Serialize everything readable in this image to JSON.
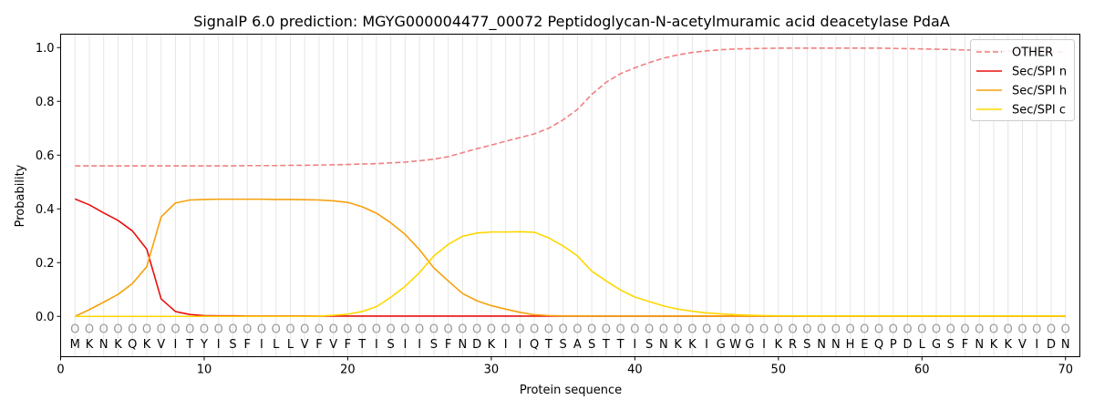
{
  "chart_data": {
    "type": "line",
    "title": "SignalP 6.0 prediction: MGYG000004477_00072 Peptidoglycan-N-acetylmuramic acid deacetylase PdaA",
    "xlabel": "Protein sequence",
    "ylabel": "Probability",
    "xlim": [
      0,
      71
    ],
    "ylim": [
      -0.15,
      1.05
    ],
    "xticks": [
      0,
      10,
      20,
      30,
      40,
      50,
      60,
      70
    ],
    "yticks": [
      0.0,
      0.2,
      0.4,
      0.6,
      0.8,
      1.0
    ],
    "xtick_labels": [
      "0",
      "10",
      "20",
      "30",
      "40",
      "50",
      "60",
      "70"
    ],
    "ytick_labels": [
      "0.0",
      "0.2",
      "0.4",
      "0.6",
      "0.8",
      "1.0"
    ],
    "grid": "vertical lines at each residue",
    "legend_position": "top-right",
    "sequence": [
      "M",
      "K",
      "N",
      "K",
      "Q",
      "K",
      "V",
      "I",
      "T",
      "Y",
      "I",
      "S",
      "F",
      "I",
      "L",
      "L",
      "V",
      "F",
      "V",
      "F",
      "T",
      "I",
      "S",
      "I",
      "I",
      "S",
      "F",
      "N",
      "D",
      "K",
      "I",
      "I",
      "Q",
      "T",
      "S",
      "A",
      "S",
      "T",
      "T",
      "I",
      "S",
      "N",
      "K",
      "K",
      "I",
      "G",
      "W",
      "G",
      "I",
      "K",
      "R",
      "S",
      "N",
      "N",
      "H",
      "E",
      "Q",
      "P",
      "D",
      "L",
      "G",
      "S",
      "F",
      "N",
      "K",
      "K",
      "V",
      "I",
      "D",
      "N"
    ],
    "marker_label": "O",
    "marker_y": -0.045,
    "series": [
      {
        "name": "OTHER",
        "color": "#f08080",
        "dashed": true,
        "values": [
          0.56,
          0.56,
          0.56,
          0.56,
          0.56,
          0.56,
          0.56,
          0.56,
          0.56,
          0.56,
          0.56,
          0.56,
          0.561,
          0.561,
          0.561,
          0.562,
          0.562,
          0.563,
          0.564,
          0.565,
          0.567,
          0.568,
          0.571,
          0.574,
          0.579,
          0.585,
          0.594,
          0.609,
          0.624,
          0.637,
          0.652,
          0.665,
          0.679,
          0.7,
          0.731,
          0.77,
          0.826,
          0.871,
          0.903,
          0.925,
          0.944,
          0.961,
          0.973,
          0.982,
          0.988,
          0.992,
          0.995,
          0.996,
          0.997,
          0.998,
          0.998,
          0.998,
          0.998,
          0.998,
          0.998,
          0.998,
          0.998,
          0.997,
          0.996,
          0.995,
          0.994,
          0.993,
          0.991,
          0.99,
          0.988,
          0.987,
          0.986,
          0.985,
          0.984,
          0.983
        ]
      },
      {
        "name": "Sec/SPI n",
        "color": "#e8100c",
        "dashed": false,
        "values": [
          0.437,
          0.415,
          0.385,
          0.357,
          0.318,
          0.25,
          0.065,
          0.018,
          0.007,
          0.003,
          0.002,
          0.002,
          0.001,
          0.001,
          0.001,
          0.001,
          0.001,
          0.001,
          0.001,
          0.001,
          0.001,
          0.001,
          0.001,
          0.001,
          0.001,
          0.001,
          0.001,
          0.001,
          0.001,
          0.001,
          0.001,
          0.001,
          0.001,
          0.001,
          0.001,
          0.001,
          0.001,
          0.001,
          0.001,
          0.001,
          0.001,
          0.001,
          0.001,
          0.001,
          0.001,
          0.001,
          0.001,
          0.001,
          0.001,
          0.001,
          0.001,
          0.001,
          0.001,
          0.001,
          0.001,
          0.001,
          0.001,
          0.001,
          0.001,
          0.001,
          0.001,
          0.001,
          0.001,
          0.001,
          0.001,
          0.001,
          0.001,
          0.001,
          0.001,
          0.001
        ]
      },
      {
        "name": "Sec/SPI h",
        "color": "#f5a10c",
        "dashed": false,
        "values": [
          0.0,
          0.025,
          0.053,
          0.082,
          0.122,
          0.185,
          0.37,
          0.422,
          0.433,
          0.435,
          0.436,
          0.436,
          0.436,
          0.436,
          0.435,
          0.435,
          0.434,
          0.433,
          0.43,
          0.424,
          0.408,
          0.384,
          0.348,
          0.305,
          0.248,
          0.18,
          0.132,
          0.085,
          0.058,
          0.04,
          0.027,
          0.015,
          0.006,
          0.003,
          0.002,
          0.002,
          0.001,
          0.001,
          0.001,
          0.001,
          0.001,
          0.001,
          0.001,
          0.001,
          0.001,
          0.001,
          0.001,
          0.001,
          0.001,
          0.001,
          0.001,
          0.001,
          0.001,
          0.001,
          0.001,
          0.001,
          0.001,
          0.001,
          0.001,
          0.001,
          0.001,
          0.001,
          0.001,
          0.001,
          0.001,
          0.001,
          0.001,
          0.001,
          0.001,
          0.001
        ]
      },
      {
        "name": "Sec/SPI c",
        "color": "#ffd700",
        "dashed": false,
        "values": [
          0.0,
          0.0,
          0.0,
          0.0,
          0.0,
          0.0,
          0.0,
          0.0,
          0.0,
          0.0,
          0.0,
          0.0,
          0.0,
          0.0,
          0.0,
          0.0,
          0.0,
          0.001,
          0.004,
          0.008,
          0.018,
          0.036,
          0.071,
          0.112,
          0.163,
          0.225,
          0.268,
          0.298,
          0.31,
          0.314,
          0.314,
          0.315,
          0.313,
          0.292,
          0.262,
          0.225,
          0.168,
          0.132,
          0.098,
          0.072,
          0.055,
          0.039,
          0.027,
          0.019,
          0.013,
          0.009,
          0.006,
          0.004,
          0.003,
          0.002,
          0.002,
          0.001,
          0.001,
          0.001,
          0.001,
          0.001,
          0.001,
          0.001,
          0.001,
          0.001,
          0.001,
          0.001,
          0.001,
          0.001,
          0.001,
          0.001,
          0.001,
          0.001,
          0.001,
          0.001
        ]
      }
    ]
  }
}
